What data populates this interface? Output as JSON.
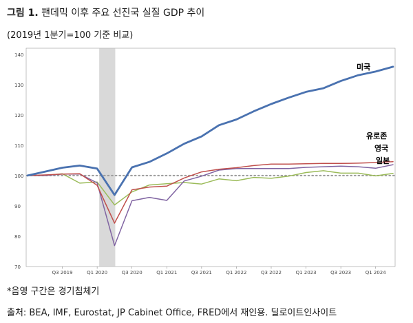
{
  "figure": {
    "label": "그림 1.",
    "title": "팬데믹 이후 주요 선진국 실질 GDP 추이",
    "subtitle": "(2019년 1분기=100 기준 비교)",
    "note": "*음영 구간은 경기침체기",
    "source": "출처: BEA, IMF, Eurostat, JP Cabinet Office, FRED에서 재인용. 딜로이트인사이트"
  },
  "chart_data": {
    "type": "line",
    "x_tick_labels": [
      "Q3 2019",
      "Q1 2020",
      "Q3 2020",
      "Q1 2021",
      "Q3 2021",
      "Q1 2022",
      "Q3 2022",
      "Q1 2023",
      "Q3 2023",
      "Q1 2024"
    ],
    "y_ticks": [
      70,
      80,
      90,
      100,
      110,
      120,
      130,
      140
    ],
    "ylim": [
      70,
      142
    ],
    "x": [
      "2019Q1",
      "2019Q2",
      "2019Q3",
      "2019Q4",
      "2020Q1",
      "2020Q2",
      "2020Q3",
      "2020Q4",
      "2021Q1",
      "2021Q2",
      "2021Q3",
      "2021Q4",
      "2022Q1",
      "2022Q2",
      "2022Q3",
      "2022Q4",
      "2023Q1",
      "2023Q2",
      "2023Q3",
      "2023Q4",
      "2024Q1",
      "2024Q2"
    ],
    "recession_shading": [
      "2020Q1",
      "2020Q2"
    ],
    "reference_line": 100,
    "series": [
      {
        "name": "미국",
        "color": "#4a72b0",
        "values": [
          100,
          101.3,
          102.6,
          103.3,
          102.3,
          93.6,
          102.7,
          104.5,
          107.3,
          110.5,
          112.9,
          116.6,
          118.5,
          121.2,
          123.6,
          125.7,
          127.6,
          128.8,
          131.2,
          133.1,
          134.3,
          135.9
        ]
      },
      {
        "name": "유로존",
        "color": "#c0504d",
        "values": [
          100,
          100.2,
          100.5,
          100.6,
          96.8,
          84.3,
          95.3,
          96.2,
          96.5,
          99.2,
          101.2,
          102.1,
          102.6,
          103.3,
          103.8,
          103.8,
          103.9,
          104.0,
          104.0,
          104.1,
          104.3,
          104.6
        ]
      },
      {
        "name": "영국",
        "color": "#8064a2",
        "values": [
          100,
          100,
          100.5,
          100.5,
          97.6,
          76.9,
          91.7,
          92.8,
          91.8,
          98.2,
          99.8,
          101.8,
          102.3,
          102.3,
          102.3,
          102.3,
          102.7,
          102.9,
          103.1,
          102.9,
          102.4,
          103.6
        ]
      },
      {
        "name": "일본",
        "color": "#9bbb59",
        "values": [
          100,
          100,
          100.6,
          97.5,
          97.9,
          90.3,
          94.6,
          96.9,
          97.3,
          97.7,
          97.2,
          98.9,
          98.3,
          99.4,
          99.1,
          99.8,
          101.0,
          101.6,
          100.8,
          100.8,
          99.9,
          100.7
        ]
      }
    ]
  }
}
